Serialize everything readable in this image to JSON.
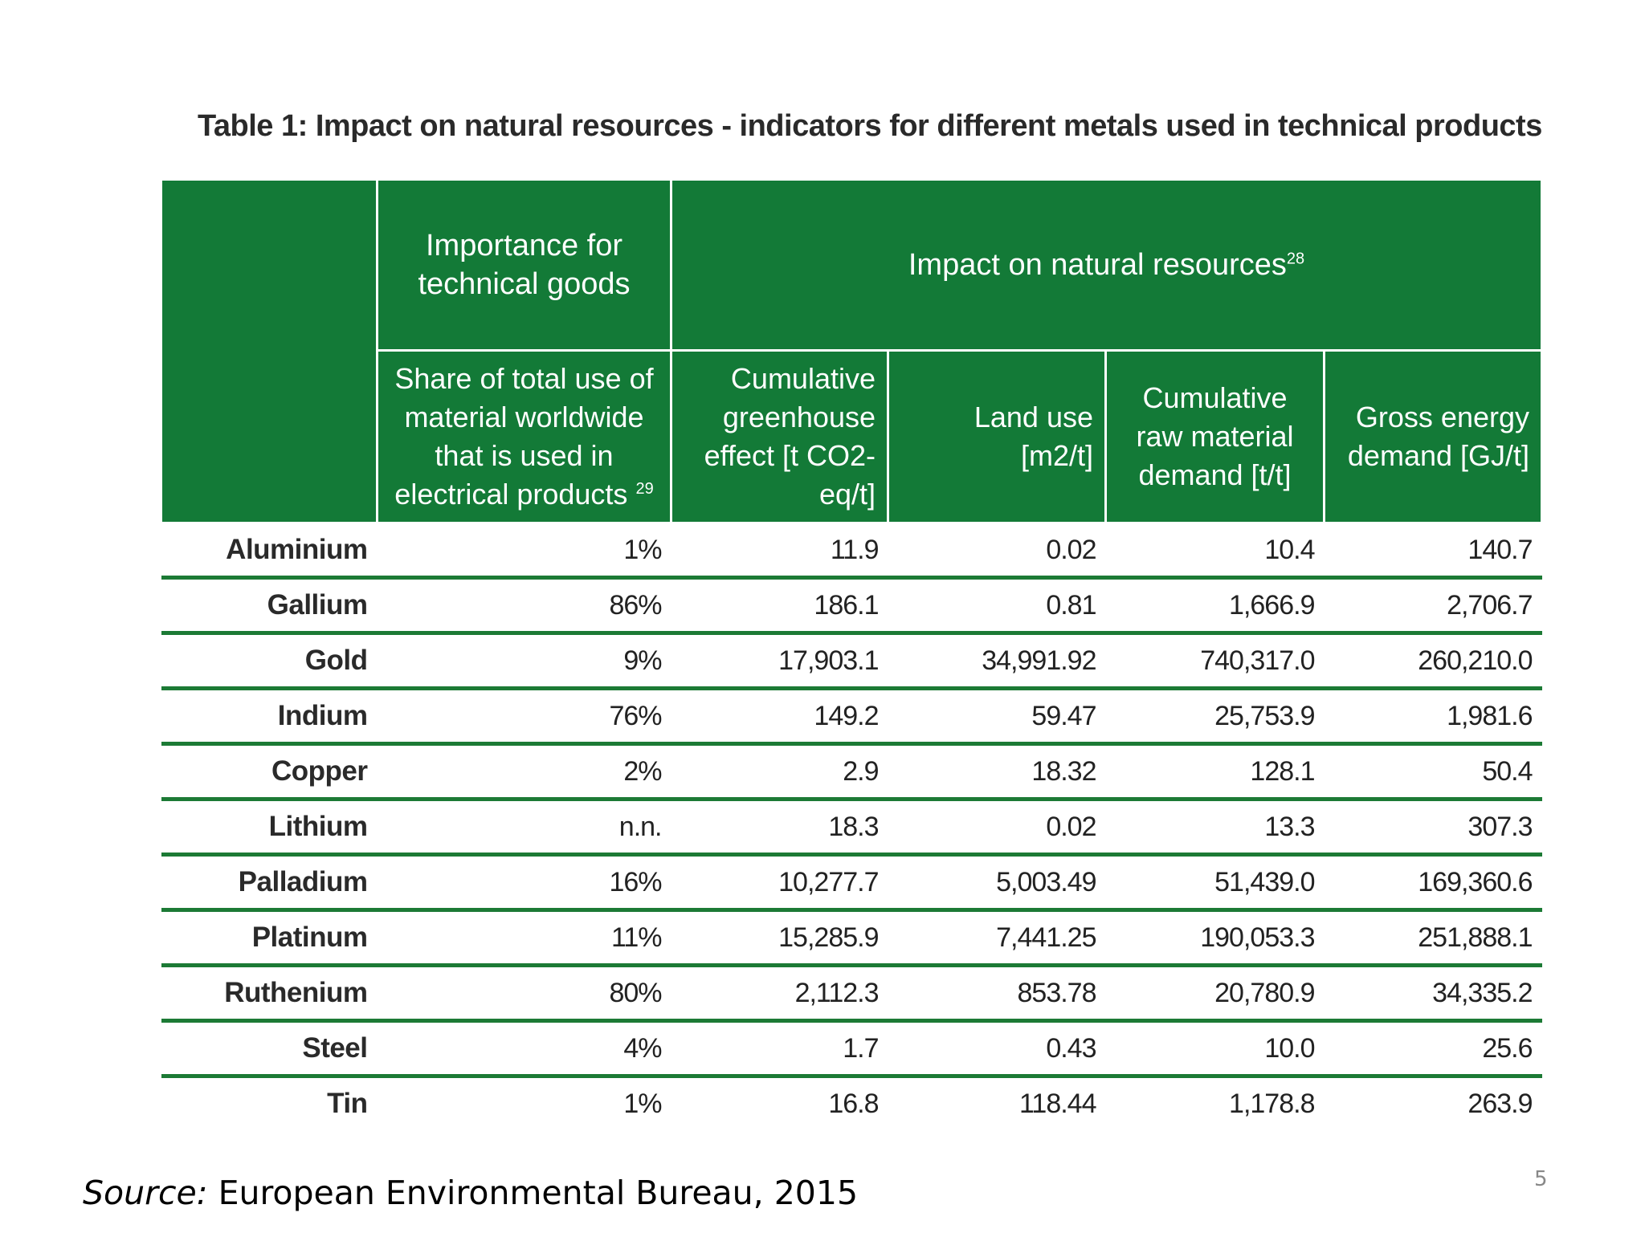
{
  "slide": {
    "table_title": "Table 1: Impact on natural resources - indicators for different metals used in technical products",
    "source_label": "Source:",
    "source_text": " European Environmental Bureau, 2015",
    "page_number": "5"
  },
  "table": {
    "group_headers": {
      "importance": "Importance for technical goods",
      "impact": "Impact on natural resources",
      "impact_footnote": "28"
    },
    "column_headers": {
      "share": "Share of total use of material worldwide that is used in electrical products",
      "share_footnote": "29",
      "greenhouse": "Cumulative greenhouse effect [t CO2-eq/t]",
      "land_use": "Land use [m2/t]",
      "raw_material": "Cumulative raw material demand  [t/t]",
      "energy": "Gross energy demand [GJ/t]"
    },
    "rows": [
      {
        "metal": "Aluminium",
        "share": "1%",
        "greenhouse": "11.9",
        "land_use": "0.02",
        "raw_material": "10.4",
        "energy": "140.7"
      },
      {
        "metal": "Gallium",
        "share": "86%",
        "greenhouse": "186.1",
        "land_use": "0.81",
        "raw_material": "1,666.9",
        "energy": "2,706.7"
      },
      {
        "metal": "Gold",
        "share": "9%",
        "greenhouse": "17,903.1",
        "land_use": "34,991.92",
        "raw_material": "740,317.0",
        "energy": "260,210.0"
      },
      {
        "metal": "Indium",
        "share": "76%",
        "greenhouse": "149.2",
        "land_use": "59.47",
        "raw_material": "25,753.9",
        "energy": "1,981.6"
      },
      {
        "metal": "Copper",
        "share": "2%",
        "greenhouse": "2.9",
        "land_use": "18.32",
        "raw_material": "128.1",
        "energy": "50.4"
      },
      {
        "metal": "Lithium",
        "share": "n.n.",
        "greenhouse": "18.3",
        "land_use": "0.02",
        "raw_material": "13.3",
        "energy": "307.3"
      },
      {
        "metal": "Palladium",
        "share": "16%",
        "greenhouse": "10,277.7",
        "land_use": "5,003.49",
        "raw_material": "51,439.0",
        "energy": "169,360.6"
      },
      {
        "metal": "Platinum",
        "share": "11%",
        "greenhouse": "15,285.9",
        "land_use": "7,441.25",
        "raw_material": "190,053.3",
        "energy": "251,888.1"
      },
      {
        "metal": "Ruthenium",
        "share": "80%",
        "greenhouse": "2,112.3",
        "land_use": "853.78",
        "raw_material": "20,780.9",
        "energy": "34,335.2"
      },
      {
        "metal": "Steel",
        "share": "4%",
        "greenhouse": "1.7",
        "land_use": "0.43",
        "raw_material": "10.0",
        "energy": "25.6"
      },
      {
        "metal": "Tin",
        "share": "1%",
        "greenhouse": "16.8",
        "land_use": "118.44",
        "raw_material": "1,178.8",
        "energy": "263.9"
      }
    ]
  },
  "colors": {
    "header_green": "#137a37",
    "rule_green": "#1c7a35"
  }
}
